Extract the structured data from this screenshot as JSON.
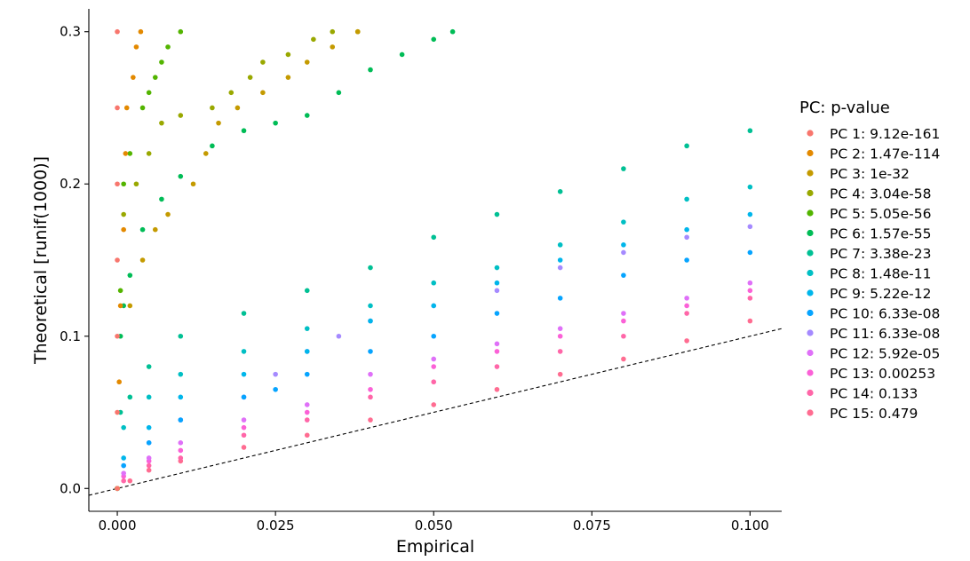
{
  "chart_data": {
    "type": "scatter",
    "title": "",
    "xlabel": "Empirical",
    "ylabel": "Theoretical [runif(1000)]",
    "xlim": [
      -0.0045,
      0.105
    ],
    "ylim": [
      -0.015,
      0.315
    ],
    "x_ticks": [
      0.0,
      0.025,
      0.05,
      0.075,
      0.1
    ],
    "x_tick_labels": [
      "0.000",
      "0.025",
      "0.050",
      "0.075",
      "0.100"
    ],
    "y_ticks": [
      0.0,
      0.1,
      0.2,
      0.3
    ],
    "y_tick_labels": [
      "0.0",
      "0.1",
      "0.2",
      "0.3"
    ],
    "grid": false,
    "reference_line": {
      "style": "dashed",
      "slope": 1.0,
      "intercept": 0.0
    },
    "legend": {
      "title": "PC: p-value",
      "position": "right"
    },
    "series": [
      {
        "name": "PC 1: 9.12e-161",
        "color": "#F8766D",
        "points": [
          [
            0,
            0
          ],
          [
            0,
            0.05
          ],
          [
            0,
            0.1
          ],
          [
            0,
            0.15
          ],
          [
            0,
            0.2
          ],
          [
            0,
            0.25
          ],
          [
            0,
            0.3
          ]
        ]
      },
      {
        "name": "PC 2: 1.47e-114",
        "color": "#E38900",
        "points": [
          [
            0,
            0
          ],
          [
            0.0003,
            0.07
          ],
          [
            0.0005,
            0.12
          ],
          [
            0.001,
            0.17
          ],
          [
            0.0013,
            0.22
          ],
          [
            0.0015,
            0.25
          ],
          [
            0.0025,
            0.27
          ],
          [
            0.003,
            0.29
          ],
          [
            0.0037,
            0.3
          ]
        ]
      },
      {
        "name": "PC 3: 1e-32",
        "color": "#C49A00",
        "points": [
          [
            0,
            0
          ],
          [
            0.002,
            0.12
          ],
          [
            0.004,
            0.15
          ],
          [
            0.006,
            0.17
          ],
          [
            0.008,
            0.18
          ],
          [
            0.012,
            0.2
          ],
          [
            0.014,
            0.22
          ],
          [
            0.016,
            0.24
          ],
          [
            0.019,
            0.25
          ],
          [
            0.023,
            0.26
          ],
          [
            0.027,
            0.27
          ],
          [
            0.03,
            0.28
          ],
          [
            0.034,
            0.29
          ],
          [
            0.038,
            0.3
          ]
        ]
      },
      {
        "name": "PC 4: 3.04e-58",
        "color": "#99A800",
        "points": [
          [
            0,
            0
          ],
          [
            0.001,
            0.18
          ],
          [
            0.003,
            0.2
          ],
          [
            0.005,
            0.22
          ],
          [
            0.007,
            0.24
          ],
          [
            0.01,
            0.245
          ],
          [
            0.015,
            0.25
          ],
          [
            0.018,
            0.26
          ],
          [
            0.021,
            0.27
          ],
          [
            0.023,
            0.28
          ],
          [
            0.027,
            0.285
          ],
          [
            0.031,
            0.295
          ],
          [
            0.034,
            0.3
          ],
          [
            0.038,
            0.3
          ]
        ]
      },
      {
        "name": "PC 5: 5.05e-56",
        "color": "#53B400",
        "points": [
          [
            0,
            0
          ],
          [
            0.0005,
            0.13
          ],
          [
            0.001,
            0.2
          ],
          [
            0.002,
            0.22
          ],
          [
            0.004,
            0.25
          ],
          [
            0.005,
            0.26
          ],
          [
            0.006,
            0.27
          ],
          [
            0.007,
            0.28
          ],
          [
            0.008,
            0.29
          ],
          [
            0.01,
            0.3
          ]
        ]
      },
      {
        "name": "PC 6: 1.57e-55",
        "color": "#00BC56",
        "points": [
          [
            0,
            0
          ],
          [
            0.0005,
            0.1
          ],
          [
            0.001,
            0.12
          ],
          [
            0.002,
            0.14
          ],
          [
            0.004,
            0.17
          ],
          [
            0.007,
            0.19
          ],
          [
            0.01,
            0.205
          ],
          [
            0.015,
            0.225
          ],
          [
            0.02,
            0.235
          ],
          [
            0.025,
            0.24
          ],
          [
            0.03,
            0.245
          ],
          [
            0.035,
            0.26
          ],
          [
            0.04,
            0.275
          ],
          [
            0.045,
            0.285
          ],
          [
            0.05,
            0.295
          ],
          [
            0.053,
            0.3
          ]
        ]
      },
      {
        "name": "PC 7: 3.38e-23",
        "color": "#00C094",
        "points": [
          [
            0,
            0
          ],
          [
            0.0005,
            0.05
          ],
          [
            0.002,
            0.06
          ],
          [
            0.005,
            0.08
          ],
          [
            0.01,
            0.1
          ],
          [
            0.02,
            0.115
          ],
          [
            0.03,
            0.13
          ],
          [
            0.04,
            0.145
          ],
          [
            0.05,
            0.165
          ],
          [
            0.06,
            0.18
          ],
          [
            0.07,
            0.195
          ],
          [
            0.08,
            0.21
          ],
          [
            0.09,
            0.225
          ],
          [
            0.1,
            0.235
          ]
        ]
      },
      {
        "name": "PC 8: 1.48e-11",
        "color": "#00BFC4",
        "points": [
          [
            0,
            0
          ],
          [
            0.001,
            0.04
          ],
          [
            0.005,
            0.06
          ],
          [
            0.01,
            0.075
          ],
          [
            0.02,
            0.09
          ],
          [
            0.03,
            0.105
          ],
          [
            0.04,
            0.12
          ],
          [
            0.05,
            0.135
          ],
          [
            0.06,
            0.145
          ],
          [
            0.07,
            0.16
          ],
          [
            0.08,
            0.175
          ],
          [
            0.09,
            0.19
          ],
          [
            0.1,
            0.198
          ]
        ]
      },
      {
        "name": "PC 9: 5.22e-12",
        "color": "#00B6EB",
        "points": [
          [
            0,
            0
          ],
          [
            0.001,
            0.02
          ],
          [
            0.005,
            0.04
          ],
          [
            0.01,
            0.06
          ],
          [
            0.02,
            0.075
          ],
          [
            0.03,
            0.09
          ],
          [
            0.04,
            0.11
          ],
          [
            0.05,
            0.12
          ],
          [
            0.06,
            0.135
          ],
          [
            0.07,
            0.15
          ],
          [
            0.08,
            0.16
          ],
          [
            0.09,
            0.17
          ],
          [
            0.1,
            0.18
          ]
        ]
      },
      {
        "name": "PC 10: 6.33e-08",
        "color": "#06A4FF",
        "points": [
          [
            0,
            0
          ],
          [
            0.001,
            0.015
          ],
          [
            0.005,
            0.03
          ],
          [
            0.01,
            0.045
          ],
          [
            0.02,
            0.06
          ],
          [
            0.025,
            0.065
          ],
          [
            0.03,
            0.075
          ],
          [
            0.04,
            0.09
          ],
          [
            0.05,
            0.1
          ],
          [
            0.06,
            0.115
          ],
          [
            0.07,
            0.125
          ],
          [
            0.08,
            0.14
          ],
          [
            0.09,
            0.15
          ],
          [
            0.1,
            0.155
          ]
        ]
      },
      {
        "name": "PC 11: 6.33e-08",
        "color": "#A58AFF",
        "points": [
          [
            0,
            0
          ],
          [
            0.001,
            0.015
          ],
          [
            0.005,
            0.03
          ],
          [
            0.01,
            0.045
          ],
          [
            0.02,
            0.06
          ],
          [
            0.025,
            0.075
          ],
          [
            0.03,
            0.09
          ],
          [
            0.035,
            0.1
          ],
          [
            0.04,
            0.11
          ],
          [
            0.05,
            0.12
          ],
          [
            0.06,
            0.13
          ],
          [
            0.07,
            0.145
          ],
          [
            0.08,
            0.155
          ],
          [
            0.09,
            0.165
          ],
          [
            0.1,
            0.172
          ]
        ]
      },
      {
        "name": "PC 12: 5.92e-05",
        "color": "#DF70F8",
        "points": [
          [
            0,
            0
          ],
          [
            0.001,
            0.01
          ],
          [
            0.005,
            0.02
          ],
          [
            0.01,
            0.03
          ],
          [
            0.02,
            0.045
          ],
          [
            0.03,
            0.055
          ],
          [
            0.04,
            0.075
          ],
          [
            0.05,
            0.085
          ],
          [
            0.06,
            0.095
          ],
          [
            0.07,
            0.105
          ],
          [
            0.08,
            0.115
          ],
          [
            0.09,
            0.125
          ],
          [
            0.1,
            0.135
          ]
        ]
      },
      {
        "name": "PC 13: 0.00253",
        "color": "#FB61D7",
        "points": [
          [
            0,
            0
          ],
          [
            0.001,
            0.008
          ],
          [
            0.005,
            0.018
          ],
          [
            0.01,
            0.025
          ],
          [
            0.02,
            0.04
          ],
          [
            0.03,
            0.05
          ],
          [
            0.04,
            0.065
          ],
          [
            0.05,
            0.08
          ],
          [
            0.06,
            0.09
          ],
          [
            0.07,
            0.1
          ],
          [
            0.08,
            0.11
          ],
          [
            0.09,
            0.12
          ],
          [
            0.1,
            0.13
          ]
        ]
      },
      {
        "name": "PC 14: 0.133",
        "color": "#FF66A8",
        "points": [
          [
            0,
            0
          ],
          [
            0.001,
            0.005
          ],
          [
            0.005,
            0.015
          ],
          [
            0.01,
            0.02
          ],
          [
            0.02,
            0.035
          ],
          [
            0.03,
            0.045
          ],
          [
            0.04,
            0.06
          ],
          [
            0.05,
            0.07
          ],
          [
            0.06,
            0.08
          ],
          [
            0.07,
            0.09
          ],
          [
            0.08,
            0.1
          ],
          [
            0.09,
            0.115
          ],
          [
            0.1,
            0.125
          ]
        ]
      },
      {
        "name": "PC 15: 0.479",
        "color": "#FF6C91",
        "points": [
          [
            0,
            0
          ],
          [
            0.002,
            0.005
          ],
          [
            0.005,
            0.012
          ],
          [
            0.01,
            0.018
          ],
          [
            0.02,
            0.027
          ],
          [
            0.03,
            0.035
          ],
          [
            0.04,
            0.045
          ],
          [
            0.05,
            0.055
          ],
          [
            0.06,
            0.065
          ],
          [
            0.07,
            0.075
          ],
          [
            0.08,
            0.085
          ],
          [
            0.09,
            0.097
          ],
          [
            0.1,
            0.11
          ]
        ]
      }
    ]
  }
}
